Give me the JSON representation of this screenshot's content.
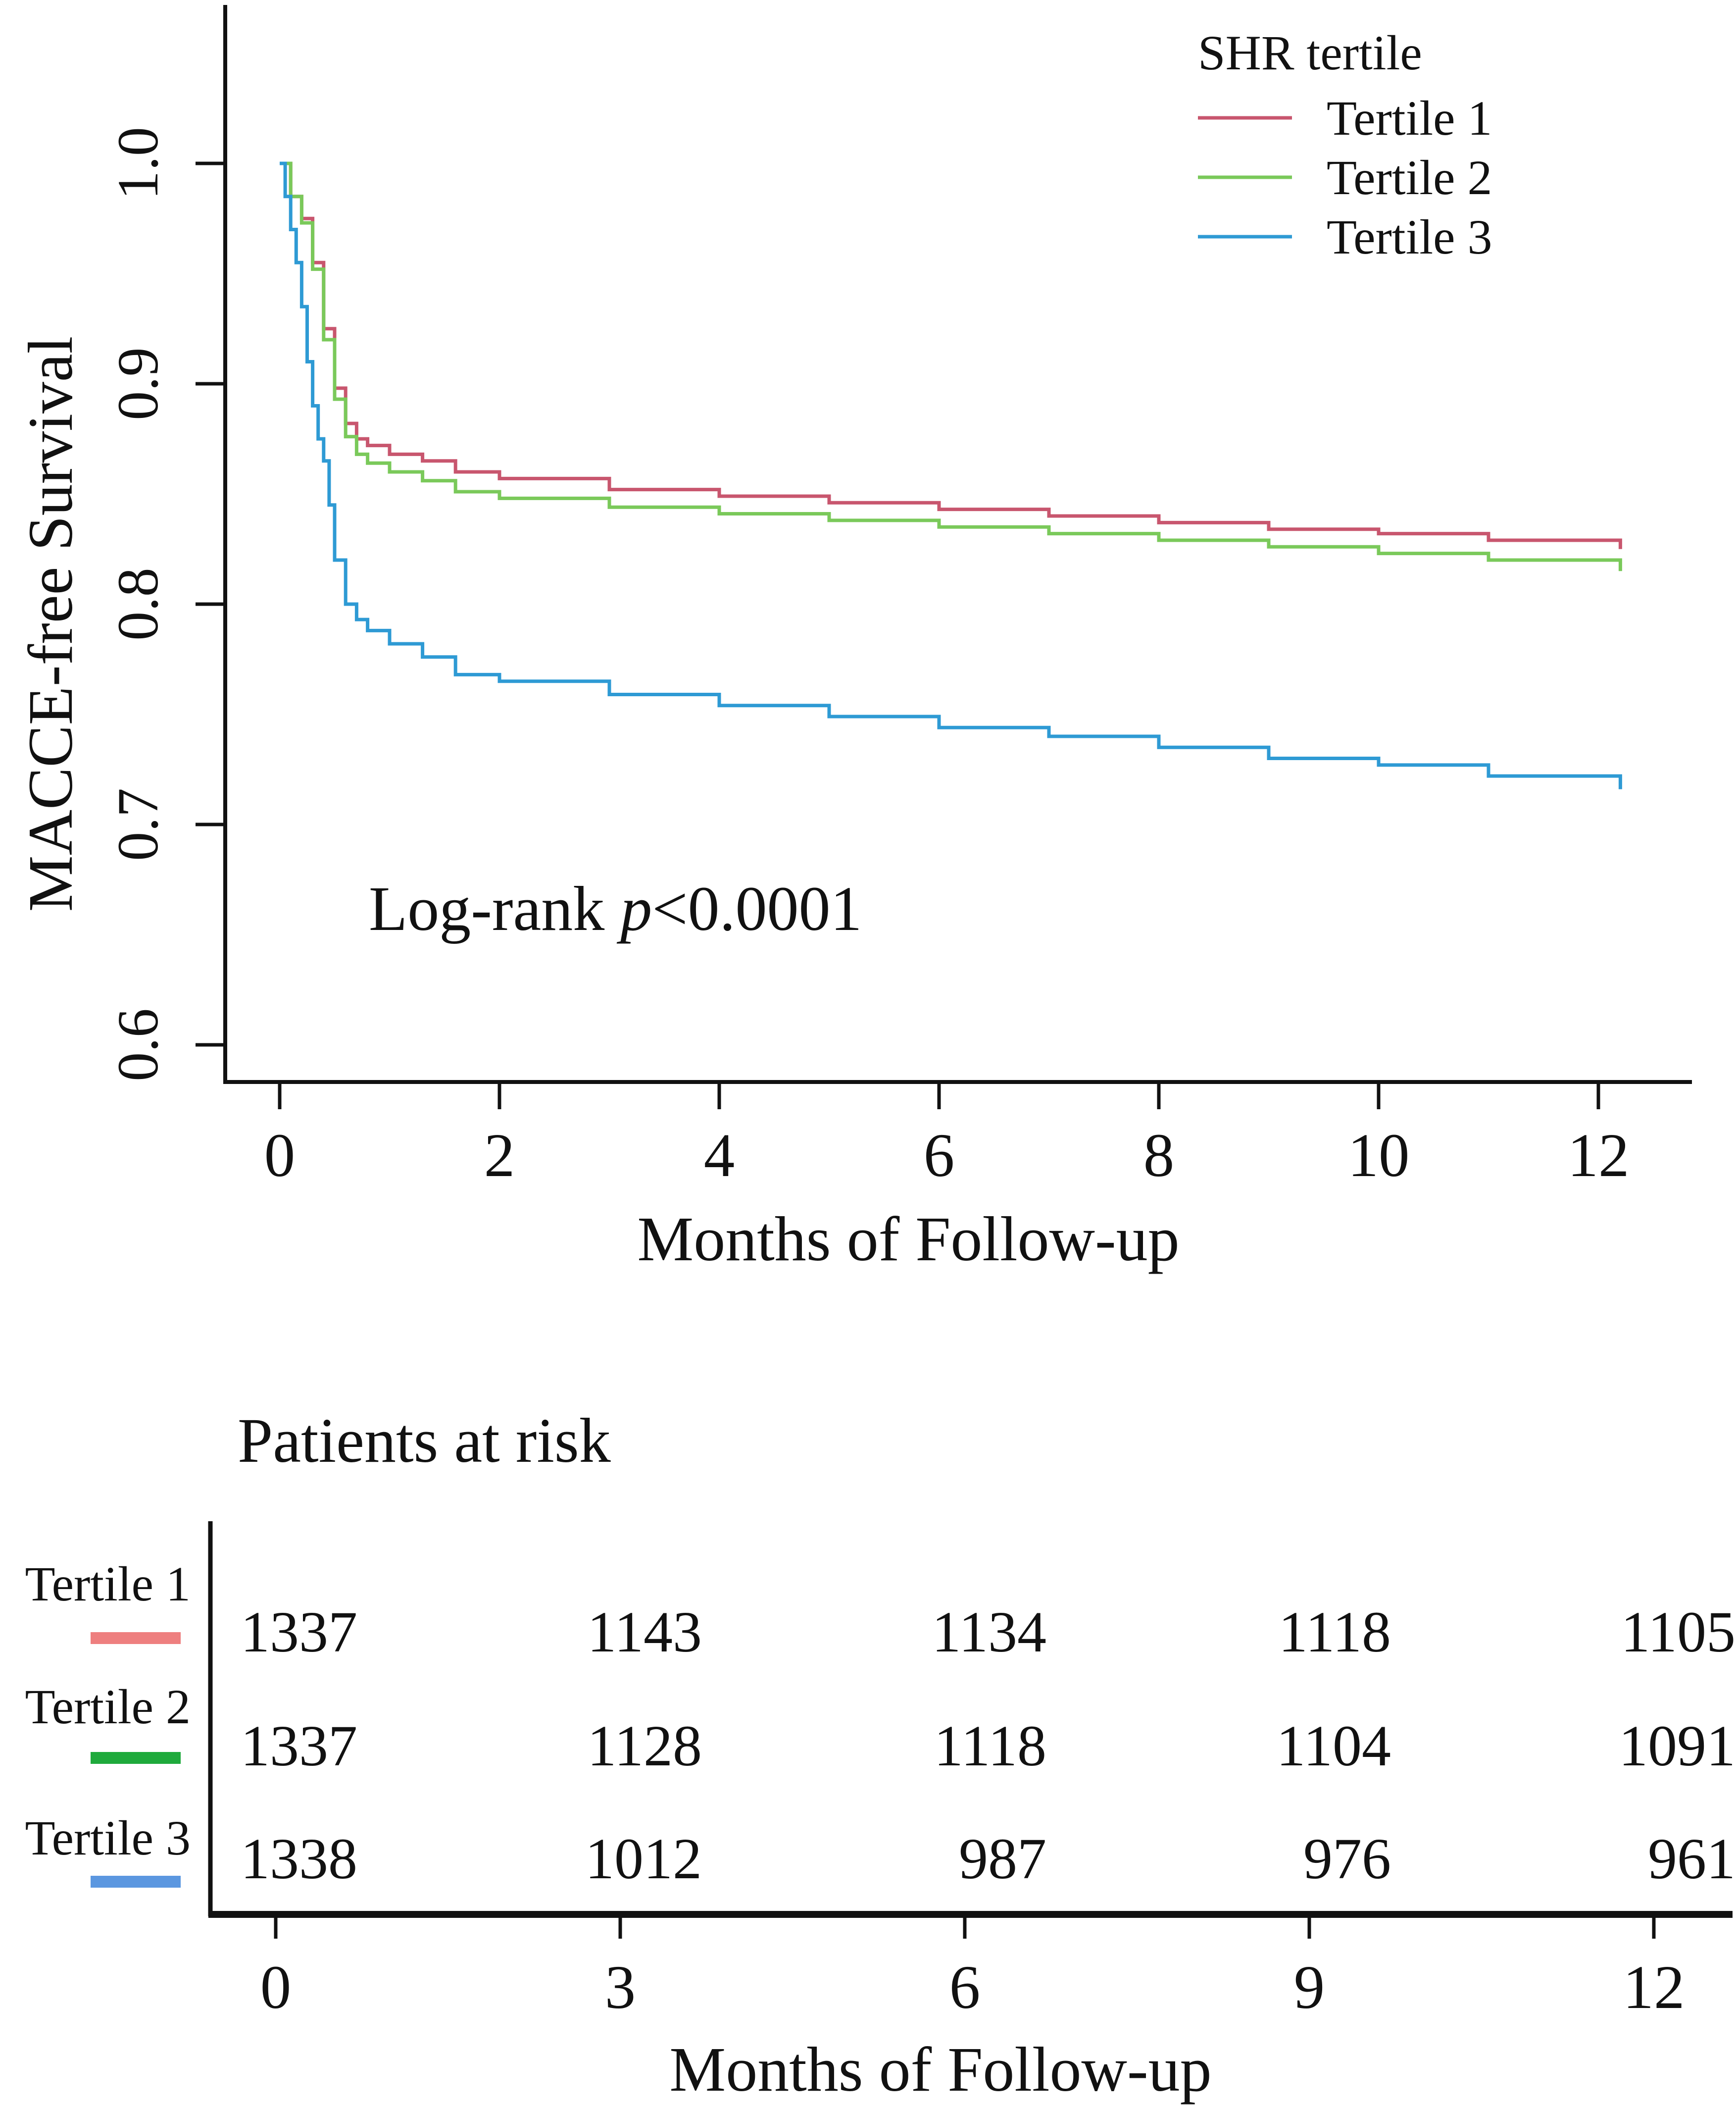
{
  "chart_data": [
    {
      "type": "line",
      "subtype": "kaplan-meier",
      "title": "",
      "xlabel": "Months of Follow-up",
      "ylabel": "MACCE-free Survival",
      "xlim": [
        0,
        12.2
      ],
      "ylim": [
        0.6,
        1.05
      ],
      "xticks": [
        0,
        2,
        4,
        6,
        8,
        10,
        12
      ],
      "yticks": [
        0.6,
        0.7,
        0.8,
        0.9,
        1.0
      ],
      "ytick_labels": [
        "0.6",
        "0.7",
        "0.8",
        "0.9",
        "1.0"
      ],
      "legend": {
        "title": "SHR tertile",
        "position": "top-right",
        "entries": [
          "Tertile 1",
          "Tertile 2",
          "Tertile 3"
        ]
      },
      "annotation": {
        "prefix": "Log-rank ",
        "p": "p",
        "suffix": "<0.0001"
      },
      "series": [
        {
          "name": "Tertile 1",
          "color": "#c8566e",
          "x": [
            0,
            0.1,
            0.2,
            0.3,
            0.4,
            0.5,
            0.6,
            0.7,
            0.8,
            1.0,
            1.3,
            1.6,
            2.0,
            3.0,
            4.0,
            5.0,
            6.0,
            7.0,
            8.0,
            9.0,
            10.0,
            11.0,
            12.2
          ],
          "y": [
            1.0,
            0.985,
            0.975,
            0.955,
            0.925,
            0.898,
            0.882,
            0.875,
            0.872,
            0.868,
            0.865,
            0.86,
            0.857,
            0.852,
            0.849,
            0.846,
            0.843,
            0.84,
            0.837,
            0.834,
            0.832,
            0.829,
            0.825
          ]
        },
        {
          "name": "Tertile 2",
          "color": "#7ac95a",
          "x": [
            0,
            0.1,
            0.2,
            0.3,
            0.4,
            0.5,
            0.6,
            0.7,
            0.8,
            1.0,
            1.3,
            1.6,
            2.0,
            3.0,
            4.0,
            5.0,
            6.0,
            7.0,
            8.0,
            9.0,
            10.0,
            11.0,
            12.2
          ],
          "y": [
            1.0,
            0.985,
            0.973,
            0.952,
            0.92,
            0.893,
            0.876,
            0.868,
            0.864,
            0.86,
            0.856,
            0.851,
            0.848,
            0.844,
            0.841,
            0.838,
            0.835,
            0.832,
            0.829,
            0.826,
            0.823,
            0.82,
            0.815
          ]
        },
        {
          "name": "Tertile 3",
          "color": "#2e9ad4",
          "x": [
            0,
            0.05,
            0.1,
            0.15,
            0.2,
            0.25,
            0.3,
            0.35,
            0.4,
            0.45,
            0.5,
            0.6,
            0.7,
            0.8,
            1.0,
            1.3,
            1.6,
            2.0,
            3.0,
            4.0,
            5.0,
            6.0,
            7.0,
            8.0,
            9.0,
            10.0,
            11.0,
            12.2
          ],
          "y": [
            1.0,
            0.985,
            0.97,
            0.955,
            0.935,
            0.91,
            0.89,
            0.875,
            0.865,
            0.845,
            0.82,
            0.8,
            0.793,
            0.788,
            0.782,
            0.776,
            0.768,
            0.765,
            0.759,
            0.754,
            0.749,
            0.744,
            0.74,
            0.735,
            0.73,
            0.727,
            0.722,
            0.716
          ]
        }
      ]
    },
    {
      "type": "table",
      "title": "Patients at risk",
      "xlabel": "Months of Follow-up",
      "xticks": [
        0,
        3,
        6,
        9,
        12
      ],
      "rows": [
        {
          "name": "Tertile 1",
          "color": "#ee7f7f",
          "values": [
            1337,
            1143,
            1134,
            1118,
            1105
          ]
        },
        {
          "name": "Tertile 2",
          "color": "#1faa3c",
          "values": [
            1337,
            1128,
            1118,
            1104,
            1091
          ]
        },
        {
          "name": "Tertile 3",
          "color": "#5b97e0",
          "values": [
            1338,
            1012,
            987,
            976,
            961
          ]
        }
      ]
    }
  ]
}
